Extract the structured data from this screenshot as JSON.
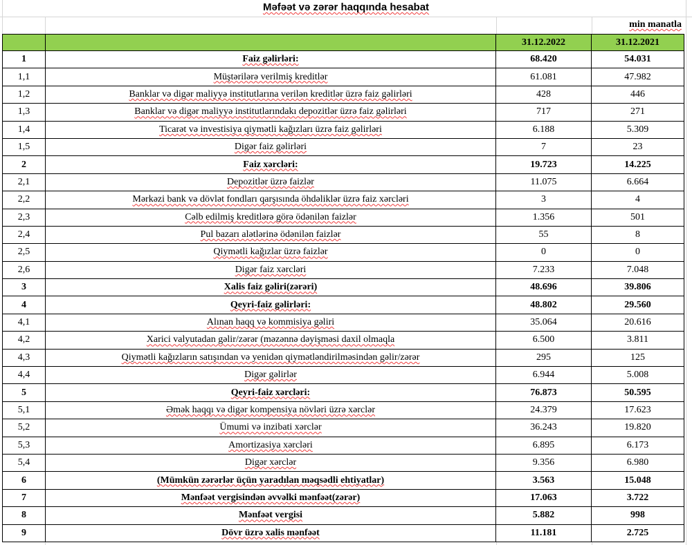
{
  "title": "Məfəət və zərər haqqında hesabat",
  "unit_note": "min manatla",
  "columns": {
    "col_2022": "31.12.2022",
    "col_2021": "31.12.2021"
  },
  "colors": {
    "header_green": "#92D050",
    "table_border": "#000000",
    "gridline_gray": "#d6d6d6",
    "spellcheck_red": "#f03a3a"
  },
  "rows": [
    {
      "num": "1",
      "label": "Faiz gəlirləri:",
      "v2022": "68.420",
      "v2021": "54.031",
      "bold": true
    },
    {
      "num": "1,1",
      "label": "Müştərilərə verilmiş kreditlər",
      "v2022": "61.081",
      "v2021": "47.982",
      "bold": false
    },
    {
      "num": "1,2",
      "label": "Banklar və digər maliyyə institutlarına verilən kreditlər üzrə faiz gəlirləri",
      "v2022": "428",
      "v2021": "446",
      "bold": false
    },
    {
      "num": "1,3",
      "label": "Banklar və digər maliyyə institutlarındakı depozitlər üzrə faiz gəlirləri",
      "v2022": "717",
      "v2021": "271",
      "bold": false
    },
    {
      "num": "1,4",
      "label": "Ticarət və investisiya qiymətli kağızları üzrə faiz gəlirləri",
      "v2022": "6.188",
      "v2021": "5.309",
      "bold": false
    },
    {
      "num": "1,5",
      "label": "Digər faiz gəlirləri",
      "v2022": "7",
      "v2021": "23",
      "bold": false
    },
    {
      "num": "2",
      "label": "Faiz xərcləri:",
      "v2022": "19.723",
      "v2021": "14.225",
      "bold": true
    },
    {
      "num": "2,1",
      "label": "Depozitlər üzrə faizlər",
      "v2022": "11.075",
      "v2021": "6.664",
      "bold": false
    },
    {
      "num": "2,2",
      "label": "Mərkəzi bank və dövlət fondları qarşısında öhdəliklər üzrə faiz xərcləri",
      "v2022": "3",
      "v2021": "4",
      "bold": false
    },
    {
      "num": "2,3",
      "label": "Cəlb edilmiş kreditlərə görə ödənilən faizlər",
      "v2022": "1.356",
      "v2021": "501",
      "bold": false
    },
    {
      "num": "2,4",
      "label": "Pul bazarı alətlərinə ödənilən faizlər",
      "v2022": "55",
      "v2021": "8",
      "bold": false
    },
    {
      "num": "2,5",
      "label": "Qiymətli kağızlar üzrə faizlər",
      "v2022": "0",
      "v2021": "0",
      "bold": false
    },
    {
      "num": "2,6",
      "label": "Digər faiz xərcləri",
      "v2022": "7.233",
      "v2021": "7.048",
      "bold": false
    },
    {
      "num": "3",
      "label": "Xalis faiz gəliri(zərəri)",
      "v2022": "48.696",
      "v2021": "39.806",
      "bold": true
    },
    {
      "num": "4",
      "label": "Qeyri-faiz gəlirləri:",
      "v2022": "48.802",
      "v2021": "29.560",
      "bold": true
    },
    {
      "num": "4,1",
      "label": "Alınan haqq və kommisiya gəliri",
      "v2022": "35.064",
      "v2021": "20.616",
      "bold": false
    },
    {
      "num": "4,2",
      "label": "Xarici valyutadan gəlir/zərər (məzənnə dəyişməsi daxil olmaqla",
      "v2022": "6.500",
      "v2021": "3.811",
      "bold": false
    },
    {
      "num": "4,3",
      "label": "Qiymətli kağızların satışından və yenidən qiymətləndirilməsindən gəlir/zərər",
      "v2022": "295",
      "v2021": "125",
      "bold": false
    },
    {
      "num": "4,4",
      "label": "Digər gəlirlər",
      "v2022": "6.944",
      "v2021": "5.008",
      "bold": false
    },
    {
      "num": "5",
      "label": "Qeyri-faiz xərcləri:",
      "v2022": "76.873",
      "v2021": "50.595",
      "bold": true
    },
    {
      "num": "5,1",
      "label": "Əmək haqqı və digər kompensiya növləri üzrə xərclər",
      "v2022": "24.379",
      "v2021": "17.623",
      "bold": false
    },
    {
      "num": "5,2",
      "label": "Ümumi və inzibati xərclər",
      "v2022": "36.243",
      "v2021": "19.820",
      "bold": false
    },
    {
      "num": "5,3",
      "label": "Amortizasiya xərcləri",
      "v2022": "6.895",
      "v2021": "6.173",
      "bold": false
    },
    {
      "num": "5,4",
      "label": "Digər xərclər",
      "v2022": "9.356",
      "v2021": "6.980",
      "bold": false
    },
    {
      "num": "6",
      "label": "(Mümkün zərərlər üçün yaradılan məqsədli ehtiyatlar)",
      "v2022": "3.563",
      "v2021": "15.048",
      "bold": true
    },
    {
      "num": "7",
      "label": "Mənfəət vergisindən əvvəlki mənfəət(zərər)",
      "v2022": "17.063",
      "v2021": "3.722",
      "bold": true
    },
    {
      "num": "8",
      "label": "Mənfəət vergisi",
      "v2022": "5.882",
      "v2021": "998",
      "bold": true
    },
    {
      "num": "9",
      "label": "Dövr üzrə xalis mənfəət",
      "v2022": "11.181",
      "v2021": "2.725",
      "bold": true
    }
  ]
}
